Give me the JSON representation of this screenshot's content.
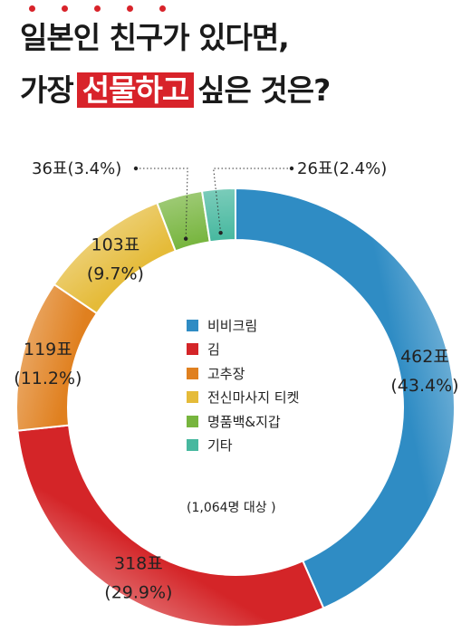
{
  "title": {
    "line1": "일본인 친구가 있다면,",
    "line2_prefix": "가장",
    "line2_highlight": "선물하고",
    "line2_suffix": "싶은 것은?"
  },
  "colors": {
    "accent": "#d8232a"
  },
  "chart_data": {
    "type": "pie",
    "style": "donut",
    "total_note": "(1,064명 대상 )",
    "slices": [
      {
        "name": "비비크림",
        "votes": 462,
        "percent": 43.4,
        "label_count": "462표",
        "label_pct": "(43.4%)",
        "color": "#2f8cc4"
      },
      {
        "name": "김",
        "votes": 318,
        "percent": 29.9,
        "label_count": "318표",
        "label_pct": "(29.9%)",
        "color": "#d42528"
      },
      {
        "name": "고추장",
        "votes": 119,
        "percent": 11.2,
        "label_count": "119표",
        "label_pct": "(11.2%)",
        "color": "#e0801f"
      },
      {
        "name": "전신마사지 티켓",
        "votes": 103,
        "percent": 9.7,
        "label_count": "103표",
        "label_pct": "(9.7%)",
        "color": "#e5bb39"
      },
      {
        "name": "명품백&지갑",
        "votes": 36,
        "percent": 3.4,
        "label_count": "36표(3.4%)",
        "label_pct": "",
        "color": "#77b53e"
      },
      {
        "name": "기타",
        "votes": 26,
        "percent": 2.4,
        "label_count": "26표(2.4%)",
        "label_pct": "",
        "color": "#47b89f"
      }
    ]
  }
}
